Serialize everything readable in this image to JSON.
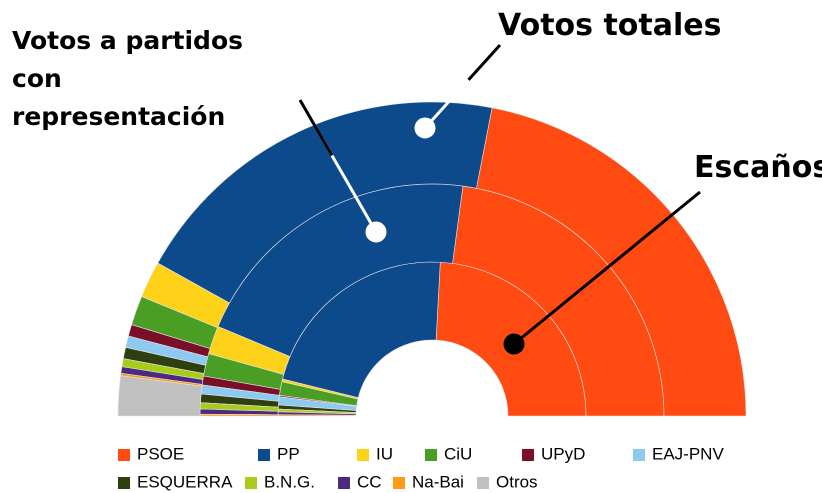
{
  "chart_data": {
    "type": "donut",
    "categories": [
      "PSOE",
      "PP",
      "IU",
      "CiU",
      "UPyD",
      "EAJ-PNV",
      "ESQUERRA",
      "B.N.G.",
      "CC",
      "Na-Bai",
      "Otros"
    ],
    "colors": [
      "#ff4a12",
      "#0d4a8c",
      "#ffd21a",
      "#4b9e24",
      "#7a0f2a",
      "#8ec9f2",
      "#2e4010",
      "#a9cc1a",
      "#4b2a80",
      "#ff9a1a",
      "#c0c0c0"
    ],
    "series": [
      {
        "name": "Escaños",
        "values": [
          169,
          154,
          2,
          10,
          1,
          6,
          3,
          2,
          2,
          1,
          null
        ]
      },
      {
        "name": "Votos a partidos con representación",
        "values": [
          43.87,
          39.94,
          3.77,
          3.03,
          1.19,
          1.19,
          1.16,
          0.83,
          0.68,
          0.24,
          null
        ]
      },
      {
        "name": "Votos totales",
        "values": [
          43.87,
          39.94,
          3.77,
          3.03,
          1.19,
          1.19,
          1.16,
          0.83,
          0.68,
          0.24,
          4.1
        ]
      }
    ]
  }
}
